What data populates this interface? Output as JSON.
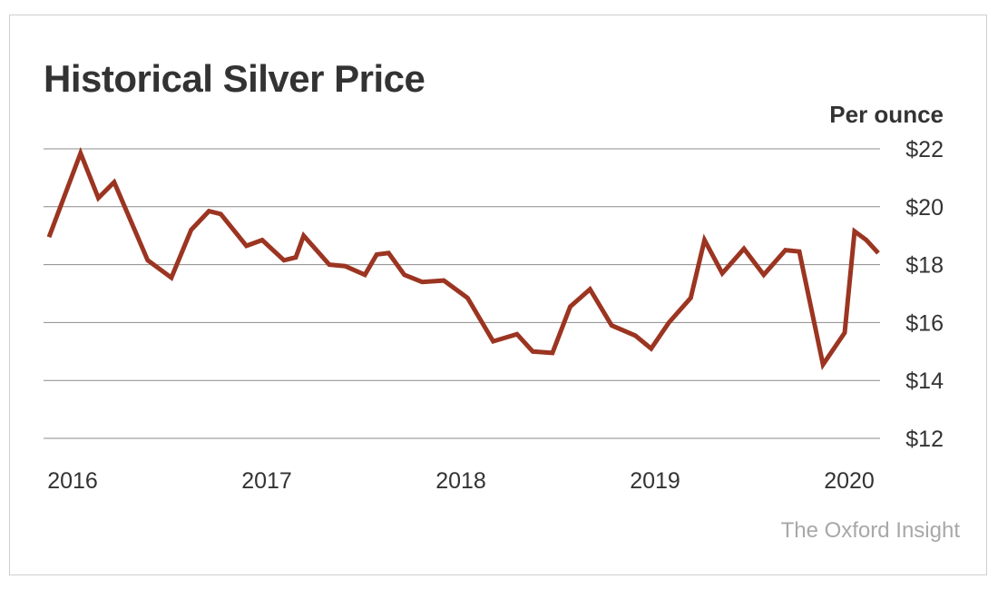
{
  "title": "Historical Silver Price",
  "unit_label": "Per ounce",
  "source": "The Oxford Insight",
  "colors": {
    "line": "#9b3521",
    "grid": "#8c8c8c",
    "text": "#333333",
    "source": "#a8a8a8"
  },
  "chart_data": {
    "type": "line",
    "title": "Historical Silver Price",
    "ylabel": "Per ounce",
    "xlabel": "",
    "ylim": [
      12,
      22
    ],
    "yticks": [
      22,
      20,
      18,
      16,
      14,
      12
    ],
    "ytick_labels": [
      "$22",
      "$20",
      "$18",
      "$16",
      "$14",
      "$12"
    ],
    "xlim": [
      2016.0,
      2020.2
    ],
    "xticks": [
      2016,
      2017,
      2018,
      2019,
      2020
    ],
    "xtick_labels": [
      "2016",
      "2017",
      "2018",
      "2019",
      "2020"
    ],
    "y_axis_side": "right",
    "grid": "horizontal",
    "series": [
      {
        "x": [
          2016.0,
          2016.16,
          2016.25,
          2016.33,
          2016.5,
          2016.62,
          2016.72,
          2016.81,
          2016.87,
          2017.0,
          2017.08,
          2017.19,
          2017.25,
          2017.29,
          2017.42,
          2017.5,
          2017.6,
          2017.66,
          2017.72,
          2017.8,
          2017.89,
          2018.0,
          2018.12,
          2018.25,
          2018.37,
          2018.45,
          2018.55,
          2018.64,
          2018.74,
          2018.85,
          2018.97,
          2019.05,
          2019.14,
          2019.25,
          2019.32,
          2019.41,
          2019.52,
          2019.62,
          2019.73,
          2019.8,
          2019.92,
          2020.03,
          2020.08,
          2020.14,
          2020.2
        ],
        "y": [
          18.95,
          21.85,
          20.3,
          20.85,
          18.15,
          17.55,
          19.2,
          19.85,
          19.75,
          18.65,
          18.85,
          18.15,
          18.25,
          19.0,
          18.0,
          17.95,
          17.65,
          18.35,
          18.4,
          17.65,
          17.4,
          17.45,
          16.85,
          15.35,
          15.6,
          15.0,
          14.95,
          16.55,
          17.15,
          15.9,
          15.55,
          15.1,
          16.0,
          16.85,
          18.85,
          17.7,
          18.55,
          17.65,
          18.5,
          18.45,
          14.55,
          15.65,
          19.15,
          18.85,
          18.4
        ]
      }
    ]
  }
}
